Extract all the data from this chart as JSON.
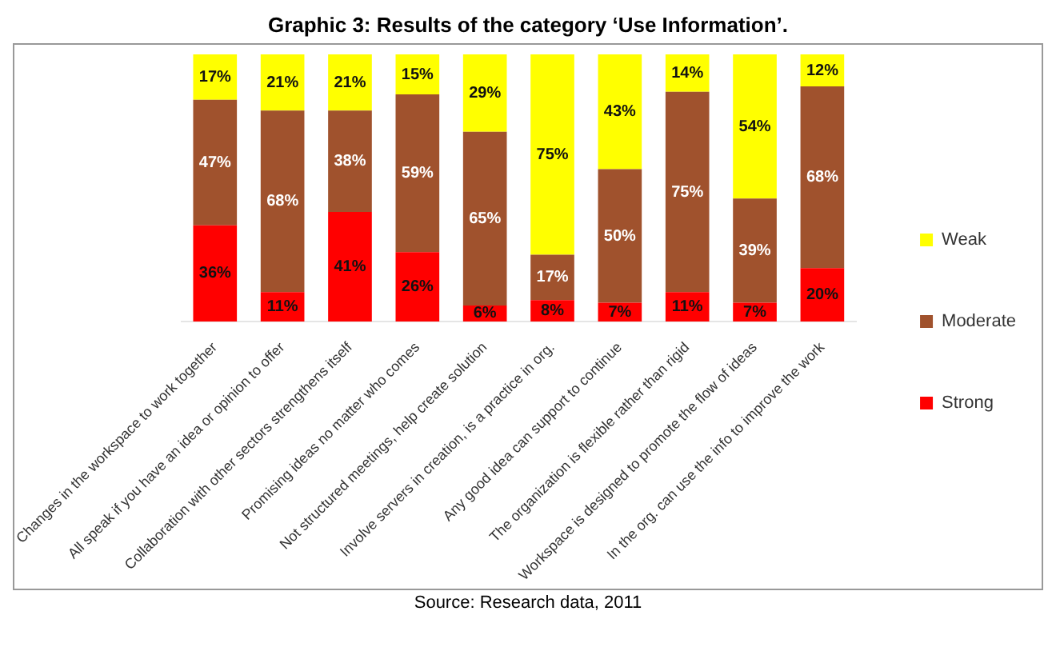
{
  "chart_data": {
    "type": "bar",
    "title": "Graphic 3: Results of the category ‘Use Information’.",
    "categories": [
      "Changes in the workspace to work together",
      "All speak if you have an idea or opinion to offer",
      "Collaboration with other sectors strengthens itself",
      "Promising ideas no matter who comes",
      "Not structured meetings, help create solution",
      "Involve servers in creation, is a practice in org.",
      "Any good idea can support to continue",
      "The organization is flexible rather than rigid",
      "Workspace is designed to promote the flow of ideas",
      "In the org. can use the info to improve the work"
    ],
    "series": [
      {
        "name": "Strong",
        "color": "#ff0000",
        "values": [
          36,
          11,
          41,
          26,
          6,
          8,
          7,
          11,
          7,
          20
        ],
        "value_labels": [
          "36%",
          "11%",
          "41%",
          "26%",
          "6%",
          "8%",
          "7%",
          "11%",
          "7%",
          "20%"
        ]
      },
      {
        "name": "Moderate",
        "color": "#a0522d",
        "values": [
          47,
          68,
          38,
          59,
          65,
          17,
          50,
          75,
          39,
          68
        ],
        "value_labels": [
          "47%",
          "68%",
          "38%",
          "59%",
          "65%",
          "17%",
          "50%",
          "75%",
          "39%",
          "68%"
        ]
      },
      {
        "name": "Weak",
        "color": "#ffff00",
        "values": [
          17,
          21,
          21,
          15,
          29,
          75,
          43,
          14,
          54,
          12
        ],
        "value_labels": [
          "17%",
          "21%",
          "21%",
          "15%",
          "29%",
          "75%",
          "43%",
          "14%",
          "54%",
          "12%"
        ]
      }
    ],
    "stacked": true,
    "ylim": [
      0,
      100
    ],
    "tick_labels": "x",
    "grid": false,
    "legend": "right",
    "annotations": [
      "Source: Research data, 2011"
    ]
  }
}
